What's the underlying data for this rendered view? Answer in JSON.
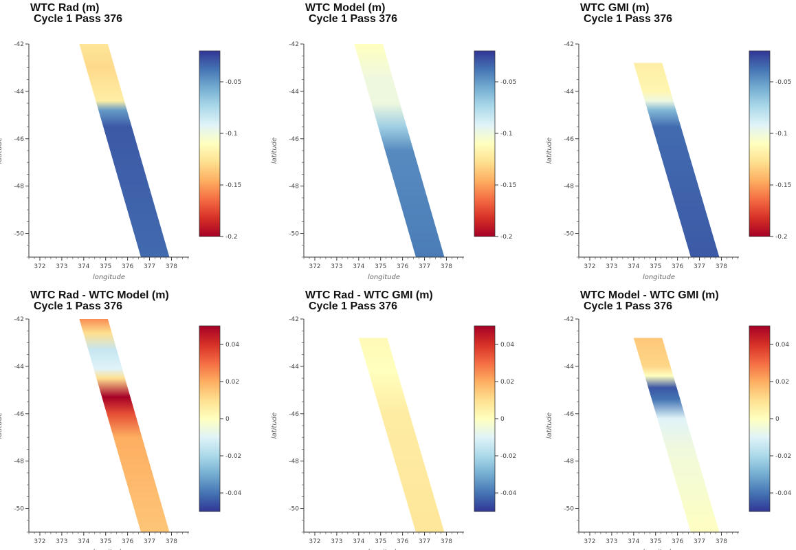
{
  "colors": {
    "rdylbu": [
      "#a50026",
      "#d73027",
      "#f46d43",
      "#fdae61",
      "#fee090",
      "#ffffbf",
      "#e0f3f8",
      "#abd9e9",
      "#74add1",
      "#4575b4",
      "#313695"
    ]
  },
  "panels": [
    {
      "title_line1": "WTC Rad (m)",
      "title_line2": "Cycle 1 Pass 376",
      "xlabel": "longitude",
      "ylabel": "latitude",
      "xticks": [
        "372",
        "373",
        "374",
        "375",
        "376",
        "377",
        "378"
      ],
      "yticks": [
        "-42",
        "-44",
        "-46",
        "-48",
        "-50"
      ],
      "cbar_ticks": [
        "-0.05",
        "-0.1",
        "-0.15",
        "-0.2"
      ]
    },
    {
      "title_line1": "WTC Model (m)",
      "title_line2": "Cycle 1 Pass 376",
      "xlabel": "longitude",
      "ylabel": "latitude",
      "xticks": [
        "372",
        "373",
        "374",
        "375",
        "376",
        "377",
        "378"
      ],
      "yticks": [
        "-42",
        "-44",
        "-46",
        "-48",
        "-50"
      ],
      "cbar_ticks": [
        "-0.05",
        "-0.1",
        "-0.15",
        "-0.2"
      ]
    },
    {
      "title_line1": "WTC GMI (m)",
      "title_line2": "Cycle 1 Pass 376",
      "xlabel": "longitude",
      "ylabel": "latitude",
      "xticks": [
        "372",
        "373",
        "374",
        "375",
        "376",
        "377",
        "378"
      ],
      "yticks": [
        "-42",
        "-44",
        "-46",
        "-48",
        "-50"
      ],
      "cbar_ticks": [
        "-0.05",
        "-0.1",
        "-0.15",
        "-0.2"
      ]
    },
    {
      "title_line1": "WTC Rad - WTC Model (m)",
      "title_line2": "Cycle 1 Pass 376",
      "xlabel": "longitude",
      "ylabel": "latitude",
      "xticks": [
        "372",
        "373",
        "374",
        "375",
        "376",
        "377",
        "378"
      ],
      "yticks": [
        "-42",
        "-44",
        "-46",
        "-48",
        "-50"
      ],
      "cbar_ticks": [
        "0.04",
        "0.02",
        "0",
        "-0.02",
        "-0.04"
      ]
    },
    {
      "title_line1": "WTC Rad - WTC GMI (m)",
      "title_line2": "Cycle 1 Pass 376",
      "xlabel": "longitude",
      "ylabel": "latitude",
      "xticks": [
        "372",
        "373",
        "374",
        "375",
        "376",
        "377",
        "378"
      ],
      "yticks": [
        "-42",
        "-44",
        "-46",
        "-48",
        "-50"
      ],
      "cbar_ticks": [
        "0.04",
        "0.02",
        "0",
        "-0.02",
        "-0.04"
      ]
    },
    {
      "title_line1": "WTC Model - WTC GMI (m)",
      "title_line2": "Cycle 1 Pass 376",
      "xlabel": "longitude",
      "ylabel": "latitude",
      "xticks": [
        "372",
        "373",
        "374",
        "375",
        "376",
        "377",
        "378"
      ],
      "yticks": [
        "-42",
        "-44",
        "-46",
        "-48",
        "-50"
      ],
      "cbar_ticks": [
        "0.04",
        "0.02",
        "0",
        "-0.02",
        "-0.04"
      ]
    }
  ],
  "chart_data": [
    {
      "type": "heatmap",
      "title": "WTC Rad (m)",
      "subtitle": "Cycle 1 Pass 376",
      "xlabel": "longitude",
      "ylabel": "latitude",
      "xlim": [
        371.5,
        378.8
      ],
      "ylim": [
        -51,
        -42
      ],
      "colorbar": {
        "cmap": "RdYlBu",
        "clim": [
          -0.2,
          -0.02
        ],
        "ticks": [
          -0.05,
          -0.1,
          -0.15,
          -0.2
        ]
      },
      "track_edges": {
        "lat": [
          -42,
          -51.3
        ],
        "left_lon": [
          373.8,
          376.7
        ],
        "right_lon": [
          375.1,
          378.0
        ]
      },
      "profile": {
        "lat": [
          -42,
          -43,
          -44.4,
          -44.8,
          -45.5,
          -51.3
        ],
        "value": [
          -0.125,
          -0.13,
          -0.12,
          -0.05,
          -0.03,
          -0.035
        ]
      }
    },
    {
      "type": "heatmap",
      "title": "WTC Model (m)",
      "subtitle": "Cycle 1 Pass 376",
      "xlabel": "longitude",
      "ylabel": "latitude",
      "xlim": [
        371.5,
        378.8
      ],
      "ylim": [
        -51,
        -42
      ],
      "colorbar": {
        "cmap": "RdYlBu",
        "clim": [
          -0.2,
          -0.02
        ],
        "ticks": [
          -0.05,
          -0.1,
          -0.15,
          -0.2
        ]
      },
      "track_edges": {
        "lat": [
          -42,
          -51.3
        ],
        "left_lon": [
          373.8,
          376.7
        ],
        "right_lon": [
          375.1,
          378.0
        ]
      },
      "profile": {
        "lat": [
          -42,
          -43.5,
          -44.5,
          -45.5,
          -46.5,
          -51.3
        ],
        "value": [
          -0.11,
          -0.1,
          -0.1,
          -0.07,
          -0.045,
          -0.04
        ]
      }
    },
    {
      "type": "heatmap",
      "title": "WTC GMI (m)",
      "subtitle": "Cycle 1 Pass 376",
      "xlabel": "longitude",
      "ylabel": "latitude",
      "xlim": [
        371.5,
        378.8
      ],
      "ylim": [
        -51,
        -42
      ],
      "colorbar": {
        "cmap": "RdYlBu",
        "clim": [
          -0.2,
          -0.02
        ],
        "ticks": [
          -0.05,
          -0.1,
          -0.15,
          -0.2
        ]
      },
      "track_edges": {
        "lat": [
          -42.8,
          -51.3
        ],
        "left_lon": [
          374.0,
          376.7
        ],
        "right_lon": [
          375.3,
          378.0
        ]
      },
      "profile": {
        "lat": [
          -42.8,
          -44,
          -44.4,
          -44.8,
          -45.5,
          -51.3
        ],
        "value": [
          -0.12,
          -0.115,
          -0.1,
          -0.06,
          -0.035,
          -0.03
        ]
      }
    },
    {
      "type": "heatmap",
      "title": "WTC Rad - WTC Model (m)",
      "subtitle": "Cycle 1 Pass 376",
      "xlabel": "longitude",
      "ylabel": "latitude",
      "xlim": [
        371.5,
        378.8
      ],
      "ylim": [
        -51,
        -42
      ],
      "colorbar": {
        "cmap": "RdYlBu_r",
        "clim": [
          -0.05,
          0.05
        ],
        "ticks": [
          0.04,
          0.02,
          0,
          -0.02,
          -0.04
        ]
      },
      "track_edges": {
        "lat": [
          -42,
          -51.3
        ],
        "left_lon": [
          373.8,
          376.7
        ],
        "right_lon": [
          375.1,
          378.0
        ]
      },
      "profile": {
        "lat": [
          -42,
          -42.6,
          -43.3,
          -44.1,
          -44.5,
          -45.3,
          -46,
          -47,
          -51.3
        ],
        "value": [
          0.025,
          0.01,
          -0.015,
          -0.01,
          0.01,
          0.05,
          0.035,
          0.02,
          0.015
        ]
      }
    },
    {
      "type": "heatmap",
      "title": "WTC Rad - WTC GMI (m)",
      "subtitle": "Cycle 1 Pass 376",
      "xlabel": "longitude",
      "ylabel": "latitude",
      "xlim": [
        371.5,
        378.8
      ],
      "ylim": [
        -51,
        -42
      ],
      "colorbar": {
        "cmap": "RdYlBu_r",
        "clim": [
          -0.05,
          0.05
        ],
        "ticks": [
          0.04,
          0.02,
          0,
          -0.02,
          -0.04
        ]
      },
      "track_edges": {
        "lat": [
          -42.8,
          -51.3
        ],
        "left_lon": [
          374.0,
          376.7
        ],
        "right_lon": [
          375.3,
          378.0
        ]
      },
      "profile": {
        "lat": [
          -42.8,
          -44.2,
          -45,
          -46,
          -51.3
        ],
        "value": [
          0.002,
          0.0,
          0.003,
          0.006,
          0.008
        ]
      }
    },
    {
      "type": "heatmap",
      "title": "WTC Model - WTC GMI (m)",
      "subtitle": "Cycle 1 Pass 376",
      "xlabel": "longitude",
      "ylabel": "latitude",
      "xlim": [
        371.5,
        378.8
      ],
      "ylim": [
        -51,
        -42
      ],
      "colorbar": {
        "cmap": "RdYlBu_r",
        "clim": [
          -0.05,
          0.05
        ],
        "ticks": [
          0.04,
          0.02,
          0,
          -0.02,
          -0.04
        ]
      },
      "track_edges": {
        "lat": [
          -42.8,
          -51.3
        ],
        "left_lon": [
          374.0,
          376.7
        ],
        "right_lon": [
          375.3,
          378.0
        ]
      },
      "profile": {
        "lat": [
          -42.8,
          -44,
          -44.4,
          -44.9,
          -45.4,
          -46.2,
          -47.5,
          -51.3
        ],
        "value": [
          0.015,
          0.012,
          0.0,
          -0.045,
          -0.04,
          -0.01,
          -0.005,
          0.0
        ]
      }
    }
  ]
}
